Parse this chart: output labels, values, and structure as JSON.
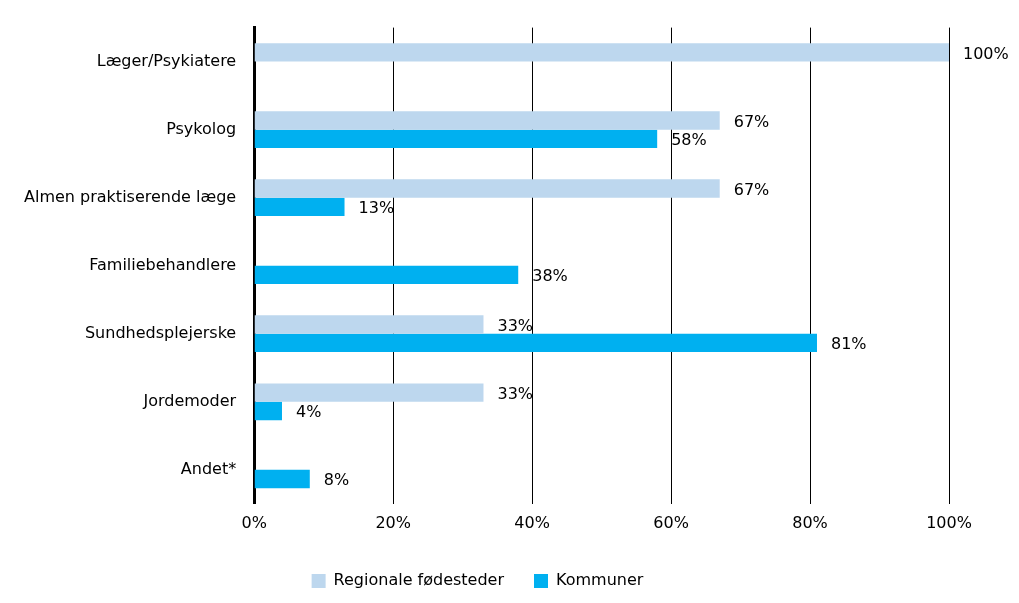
{
  "chart_data": {
    "type": "bar",
    "orientation": "horizontal",
    "categories": [
      "Læger/Psykiatere",
      "Psykolog",
      "Almen praktiserende læge",
      "Familiebehandlere",
      "Sundhedsplejerske",
      "Jordemoder",
      "Andet*"
    ],
    "series": [
      {
        "name": "Regionale fødesteder",
        "color": "#bdd7ee",
        "values": [
          100,
          67,
          67,
          null,
          33,
          33,
          null
        ],
        "value_labels": [
          "100%",
          "67%",
          "67%",
          null,
          "33%",
          "33%",
          null
        ]
      },
      {
        "name": "Kommuner",
        "color": "#00b0f0",
        "values": [
          null,
          58,
          13,
          38,
          81,
          4,
          8
        ],
        "value_labels": [
          null,
          "58%",
          "13%",
          "38%",
          "81%",
          "4%",
          "8%"
        ]
      }
    ],
    "xlim": [
      0,
      100
    ],
    "xticks": [
      {
        "value": 0,
        "label": "0%"
      },
      {
        "value": 20,
        "label": "20%"
      },
      {
        "value": 40,
        "label": "40%"
      },
      {
        "value": 60,
        "label": "60%"
      },
      {
        "value": 80,
        "label": "80%"
      },
      {
        "value": 100,
        "label": "100%"
      }
    ],
    "grid": "x",
    "legend": "bottom"
  }
}
